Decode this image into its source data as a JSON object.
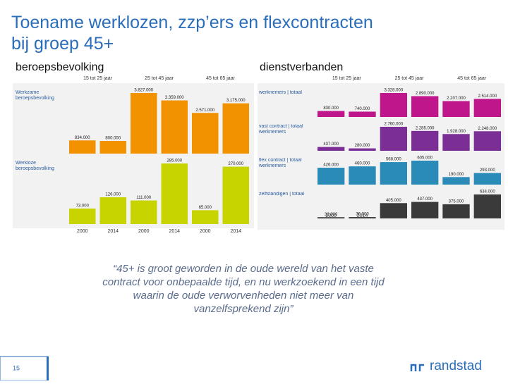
{
  "title": "Toename werklozen, zzp’ers en flexcontracten bij groep 45+",
  "quote": "“45+ is groot geworden in de oude wereld van het vaste contract voor onbepaalde tijd, en nu werkzoekend in een tijd waarin de oude verworvenheden niet meer van vanzelfsprekend zijn”",
  "page_number": "15",
  "logo": "randstad",
  "chart_data": [
    {
      "type": "bar",
      "title": "beroepsbevolking",
      "groups": [
        "15 tot 25 jaar",
        "25 tot 45 jaar",
        "45 tot 65 jaar"
      ],
      "categories": [
        "2000",
        "2014",
        "2000",
        "2014",
        "2000",
        "2014"
      ],
      "series": [
        {
          "name": "Werkzame beroepsbevolking",
          "color": "#f39200",
          "values": [
            834000,
            800000,
            3827000,
            3359000,
            2571000,
            3175000
          ],
          "value_labels": [
            "834.000",
            "800.000",
            "3.827.000",
            "3.359.000",
            "2.571.000",
            "3.175.000"
          ]
        },
        {
          "name": "Werkloze beroepsbevolking",
          "color": "#c8d400",
          "values": [
            73000,
            126000,
            111000,
            285000,
            65000,
            270000
          ],
          "value_labels": [
            "73.000",
            "126.000",
            "111.000",
            "285.000",
            "65.000",
            "270.000"
          ]
        }
      ]
    },
    {
      "type": "bar",
      "title": "dienstverbanden",
      "groups": [
        "15 tot 25 jaar",
        "25 tot 45 jaar",
        "45 tot 65 jaar"
      ],
      "categories": [
        "2000",
        "2014",
        "2000",
        "2014",
        "2000",
        "2014"
      ],
      "series": [
        {
          "name": "werknemers | totaal",
          "color": "#c0168c",
          "values": [
            830000,
            740000,
            3328000,
            2890000,
            2207000,
            2514000
          ],
          "value_labels": [
            "830.000",
            "740.000",
            "3.328.000",
            "2.890.000",
            "2.207.000",
            "2.514.000"
          ]
        },
        {
          "name": "vast contract | totaal werknemers",
          "color": "#7b2f96",
          "values": [
            437000,
            280000,
            2760000,
            2285000,
            1928000,
            2248000
          ],
          "value_labels": [
            "437.000",
            "280.000",
            "2.760.000",
            "2.285.000",
            "1.928.000",
            "2.248.000"
          ]
        },
        {
          "name": "flex contract | totaal werknemers",
          "color": "#2a8ab8",
          "values": [
            426000,
            460000,
            568000,
            605000,
            190000,
            293000
          ],
          "value_labels": [
            "426.000",
            "460.000",
            "568.000",
            "605.000",
            "190.000",
            "293.000"
          ]
        },
        {
          "name": "zelfstandigen | totaal",
          "color": "#3a3a3a",
          "values": [
            33000,
            36000,
            405000,
            437000,
            375000,
            634000
          ],
          "value_labels": [
            "33.000",
            "36.000",
            "405.000",
            "437.000",
            "375.000",
            "634.000"
          ]
        }
      ]
    }
  ]
}
